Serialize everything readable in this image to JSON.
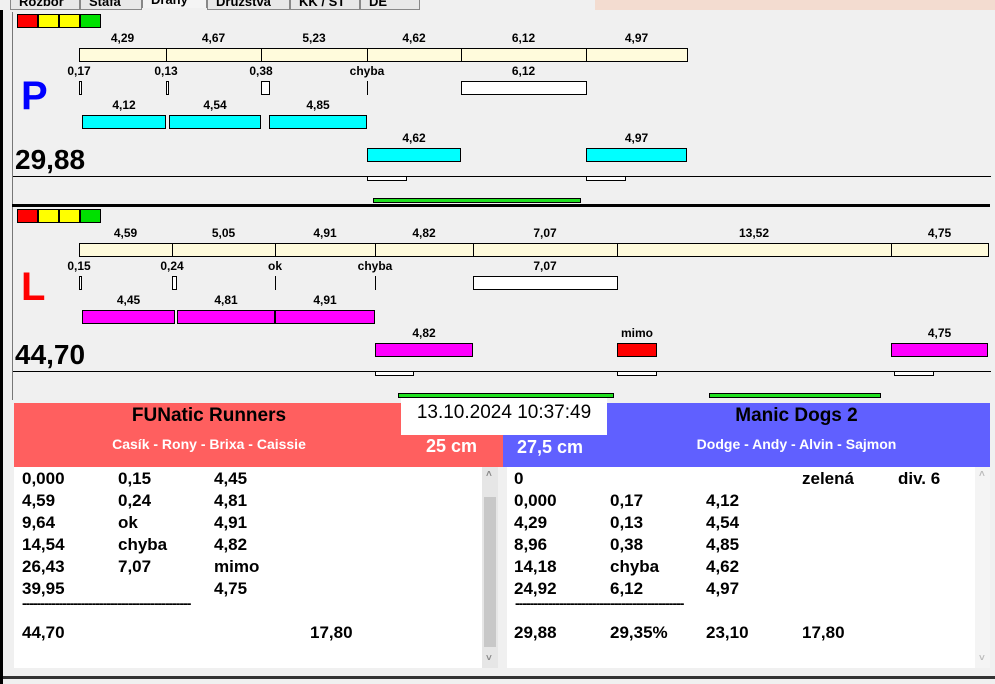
{
  "tabs": [
    "Rozbor",
    "Štafa",
    "Dráhy",
    "Družstva",
    "KK / ST",
    "DE"
  ],
  "status_lamps": [
    "#ff0000",
    "#ffff00",
    "#ffff00",
    "#00e000"
  ],
  "tracks": [
    {
      "side": "P",
      "side_color": "#0000ff",
      "total": "29,88",
      "bar_color": "#00ffff",
      "splits": [
        "4,29",
        "4,67",
        "5,23",
        "4,62",
        "6,12",
        "4,97"
      ],
      "reactions": [
        "0,17",
        "0,13",
        "0,38",
        "chyba",
        "6,12"
      ],
      "runs": [
        "4,12",
        "4,54",
        "4,85"
      ],
      "reruns": [
        "4,62",
        "4,97"
      ]
    },
    {
      "side": "L",
      "side_color": "#ff0000",
      "total": "44,70",
      "bar_color": "#ff00ff",
      "splits": [
        "4,59",
        "5,05",
        "4,91",
        "4,82",
        "7,07",
        "13,52",
        "4,75"
      ],
      "reactions": [
        "0,15",
        "0,24",
        "ok",
        "chyba",
        "7,07"
      ],
      "runs": [
        "4,45",
        "4,81",
        "4,91"
      ],
      "reruns": [
        "4,82",
        "mimo",
        "4,75"
      ]
    }
  ],
  "timestamp": "13.10.2024 10:37:49",
  "left_team": {
    "name": "FUNatic Runners",
    "members": "Casík - Rony - Brixa - Caissie",
    "height": "25 cm",
    "color": "#ff5f5f",
    "rows": [
      [
        "0,000",
        "0,15",
        "4,45",
        ""
      ],
      [
        "4,59",
        "0,24",
        "4,81",
        ""
      ],
      [
        "9,64",
        "ok",
        "4,91",
        ""
      ],
      [
        "14,54",
        "chyba",
        "4,82",
        ""
      ],
      [
        "26,43",
        "7,07",
        "mimo",
        ""
      ],
      [
        "39,95",
        "",
        "4,75",
        ""
      ]
    ],
    "separator": "----------------------------------------------",
    "summary": [
      "44,70",
      "",
      "",
      "17,80"
    ]
  },
  "right_team": {
    "name": "Manic Dogs 2",
    "members": "Dodge - Andy - Alvin - Sajmon",
    "height": "27,5 cm",
    "color": "#6060ff",
    "rows": [
      [
        "0",
        "",
        "",
        "zelená",
        "div. 6"
      ],
      [
        "0,000",
        "0,17",
        "4,12",
        "",
        ""
      ],
      [
        "4,29",
        "0,13",
        "4,54",
        "",
        ""
      ],
      [
        "8,96",
        "0,38",
        "4,85",
        "",
        ""
      ],
      [
        "14,18",
        "chyba",
        "4,62",
        "",
        ""
      ],
      [
        "24,92",
        "6,12",
        "4,97",
        "",
        ""
      ]
    ],
    "separator": "----------------------------------------------",
    "summary": [
      "29,88",
      "29,35%",
      "23,10",
      "17,80"
    ]
  }
}
